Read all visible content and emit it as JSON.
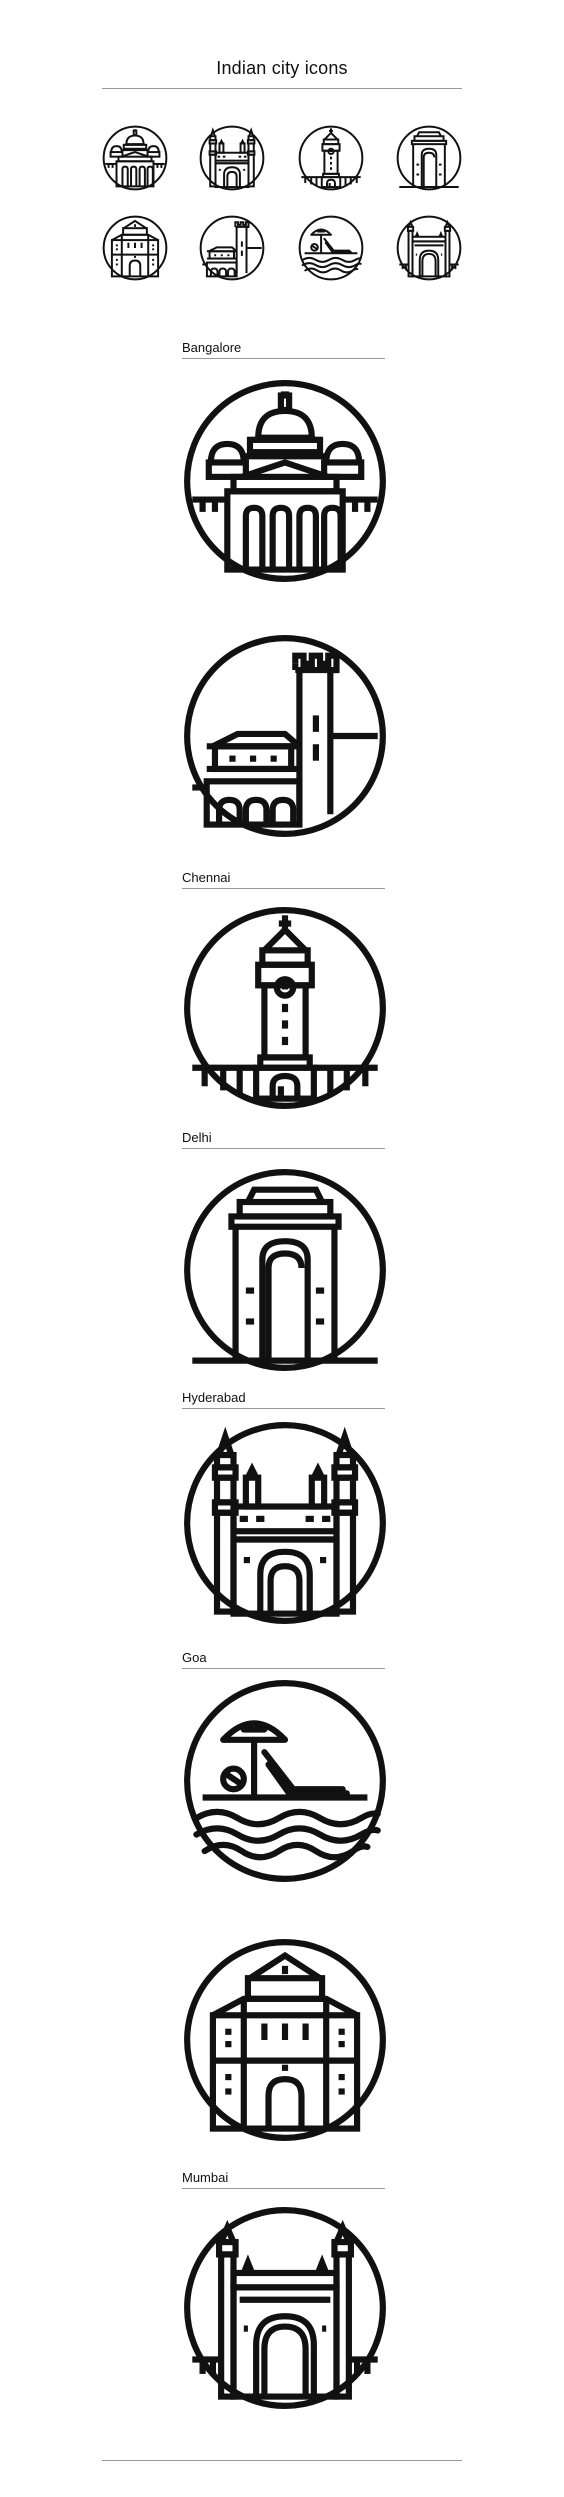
{
  "header": {
    "title": "Indian city icons"
  },
  "overview": {
    "icons": [
      "vidhana-soudha-icon",
      "charminar-icon",
      "chennai-clock-tower-icon",
      "india-gate-icon",
      "fort-facade-icon",
      "fort-tower-icon",
      "goa-beach-icon",
      "gateway-of-india-icon"
    ]
  },
  "sections": {
    "bangalore": {
      "label": "Bangalore",
      "icons": [
        "vidhana-soudha-icon",
        "fort-tower-icon"
      ]
    },
    "chennai": {
      "label": "Chennai",
      "icons": [
        "chennai-clock-tower-icon"
      ]
    },
    "delhi": {
      "label": "Delhi",
      "icons": [
        "india-gate-icon"
      ]
    },
    "hyderabad": {
      "label": "Hyderabad",
      "icons": [
        "charminar-icon"
      ]
    },
    "goa": {
      "label": "Goa",
      "icons": [
        "goa-beach-icon",
        "fort-facade-icon"
      ]
    },
    "mumbai": {
      "label": "Mumbai",
      "icons": [
        "gateway-of-india-icon"
      ]
    }
  },
  "colors": {
    "stroke": "#111111",
    "rule": "#9a9a9a",
    "background": "#ffffff"
  }
}
